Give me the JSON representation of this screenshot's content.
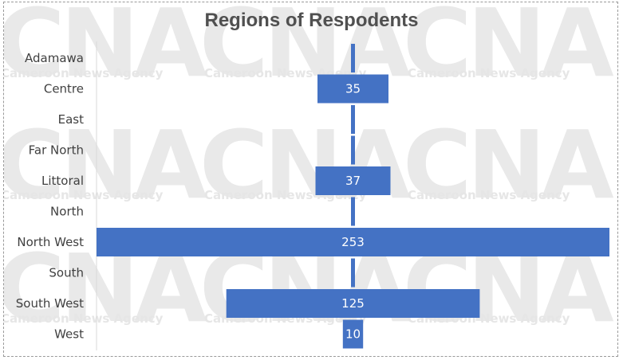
{
  "watermark": {
    "logo_text": "CNA",
    "agency_text": "Cameroon News Agency"
  },
  "colors": {
    "bar": "#4472c4",
    "axis": "#d9d9d9",
    "label_text": "#404040",
    "data_label_text": "#ffffff"
  },
  "chart_data": {
    "type": "bar",
    "orientation": "horizontal",
    "title": "Regions of Respodents",
    "xlabel": "",
    "ylabel": "",
    "categories": [
      "Adamawa",
      "Centre",
      "East",
      "Far North",
      "Littoral",
      "North",
      "North West",
      "South",
      "South West",
      "West"
    ],
    "values": [
      0,
      35,
      0,
      0,
      37,
      0,
      253,
      0,
      125,
      10
    ],
    "data_labels": [
      "",
      "35",
      "",
      "",
      "37",
      "",
      "253",
      "",
      "125",
      "10"
    ],
    "grid": false,
    "legend": "none",
    "alignment": "centered"
  }
}
